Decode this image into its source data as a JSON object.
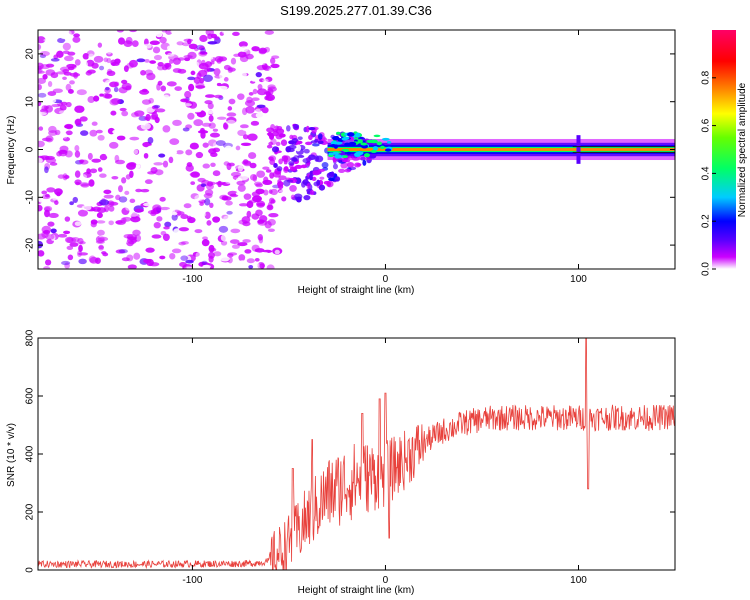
{
  "figure_title": "S199.2025.277.01.39.C36",
  "chart_data": [
    {
      "type": "heatmap",
      "title": "S199.2025.277.01.39.C36",
      "xlabel": "Height of straight line (km)",
      "ylabel": "Frequency (Hz)",
      "xlim": [
        -180,
        150
      ],
      "ylim": [
        -25,
        25
      ],
      "xticks": [
        -100,
        0,
        100
      ],
      "yticks": [
        -20,
        -10,
        0,
        10,
        20
      ],
      "colorbar": {
        "label": "Normalized spectral amplitude",
        "range": [
          0.0,
          1.0
        ],
        "ticks": [
          0.0,
          0.2,
          0.4,
          0.6,
          0.8
        ],
        "colormap": [
          "#ffffff",
          "#cc00ff",
          "#5a00ff",
          "#0000ff",
          "#00ccff",
          "#00ff66",
          "#66ff00",
          "#ffff00",
          "#ff8800",
          "#ff0000",
          "#ff0066"
        ]
      },
      "features": {
        "noise_region_x": [
          -180,
          -60
        ],
        "transition_region_x": [
          -60,
          -5
        ],
        "carrier_frequency_hz": 0,
        "carrier_start_km": -30,
        "carrier_disturbance_km": 100,
        "carrier_line_color": "#202020"
      }
    },
    {
      "type": "line",
      "xlabel": "Height of straight line (km)",
      "ylabel": "SNR (10 * v/v)",
      "xlim": [
        -180,
        150
      ],
      "ylim": [
        0,
        800
      ],
      "xticks": [
        -100,
        0,
        100
      ],
      "yticks": [
        0,
        200,
        400,
        600,
        800
      ],
      "series": [
        {
          "name": "SNR",
          "color": "#e8413c",
          "envelope": {
            "x": [
              -180,
              -120,
              -70,
              -60,
              -50,
              -40,
              -30,
              -20,
              -10,
              0,
              10,
              20,
              30,
              40,
              50,
              60,
              70,
              80,
              90,
              100,
              110,
              120,
              130,
              140,
              150
            ],
            "y": [
              20,
              20,
              22,
              30,
              90,
              180,
              260,
              300,
              320,
              330,
              380,
              440,
              480,
              505,
              520,
              525,
              525,
              525,
              525,
              525,
              525,
              525,
              525,
              525,
              530
            ]
          },
          "spikes": [
            {
              "x": -48,
              "y": 350
            },
            {
              "x": -38,
              "y": 450
            },
            {
              "x": -12,
              "y": 540
            },
            {
              "x": -3,
              "y": 590
            },
            {
              "x": 0,
              "y": 610
            },
            {
              "x": 2,
              "y": 110
            },
            {
              "x": 104,
              "y": 800
            },
            {
              "x": 105,
              "y": 280
            }
          ]
        }
      ]
    }
  ]
}
